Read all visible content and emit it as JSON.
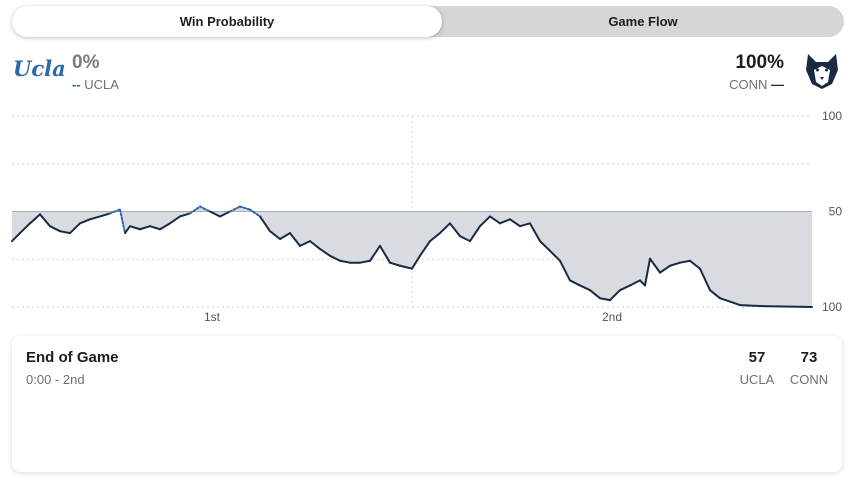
{
  "tabs": [
    {
      "label": "Win Probability",
      "active": true
    },
    {
      "label": "Game Flow",
      "active": false
    }
  ],
  "away": {
    "logo_text": "Ucla",
    "pct": "0%",
    "abbr": "UCLA",
    "color": "#2d68a8",
    "score": "57"
  },
  "home": {
    "pct": "100%",
    "abbr": "CONN",
    "color": "#1b2a44",
    "score": "73"
  },
  "status": {
    "title": "End of Game",
    "clock": "0:00 - 2nd"
  },
  "chart_data": {
    "type": "line",
    "title": "Win Probability",
    "y_axis_labels": [
      "100",
      "50",
      "100"
    ],
    "x_tick_labels": [
      "1st",
      "2nd"
    ],
    "ylim": [
      0,
      100
    ],
    "xlim": [
      0,
      40
    ],
    "y_meaning": "CONN win probability (%)",
    "series": [
      {
        "name": "CONN",
        "x": [
          0,
          0.4,
          0.9,
          1.4,
          1.9,
          2.4,
          2.9,
          3.4,
          3.9,
          4.4,
          4.9,
          5.4,
          5.65,
          5.9,
          6.4,
          6.9,
          7.4,
          7.9,
          8.4,
          8.9,
          9.4,
          9.9,
          10.4,
          10.9,
          11.4,
          11.9,
          12.4,
          12.9,
          13.4,
          13.9,
          14.4,
          14.9,
          15.4,
          15.9,
          16.4,
          16.9,
          17.4,
          17.9,
          18.4,
          18.9,
          19.4,
          20,
          20.4,
          20.9,
          21.4,
          21.9,
          22.4,
          22.9,
          23.4,
          23.9,
          24.4,
          24.9,
          25.4,
          25.9,
          26.4,
          26.9,
          27.4,
          27.9,
          28.4,
          28.9,
          29.4,
          29.9,
          30.4,
          30.9,
          31.4,
          31.65,
          31.9,
          32.4,
          32.9,
          33.4,
          33.9,
          34.4,
          34.9,
          35.4,
          36.4,
          37.4,
          40
        ],
        "values": [
          65.5,
          61.3,
          56.2,
          51.5,
          57.7,
          60.3,
          61.3,
          56.2,
          54.1,
          52.6,
          51.0,
          49.0,
          61.3,
          57.7,
          59.3,
          57.7,
          59.3,
          56.2,
          52.6,
          51.0,
          47.4,
          50,
          52.6,
          50,
          47.4,
          49.0,
          52.6,
          60.3,
          64.4,
          61.3,
          68.0,
          65.5,
          69.6,
          73.2,
          75.8,
          76.8,
          76.8,
          75.8,
          68.0,
          76.8,
          78.4,
          79.9,
          73.2,
          65.5,
          61.3,
          56.2,
          62.9,
          65.5,
          57.7,
          52.6,
          56.2,
          54.1,
          57.7,
          56.2,
          65.5,
          70.6,
          75.8,
          86.1,
          88.7,
          91.2,
          95.4,
          96.4,
          91.2,
          88.7,
          86.1,
          88.7,
          74.7,
          82.0,
          78.4,
          76.8,
          75.8,
          79.9,
          91.2,
          95.4,
          99.0,
          99.5,
          100
        ]
      }
    ],
    "grid": true
  }
}
